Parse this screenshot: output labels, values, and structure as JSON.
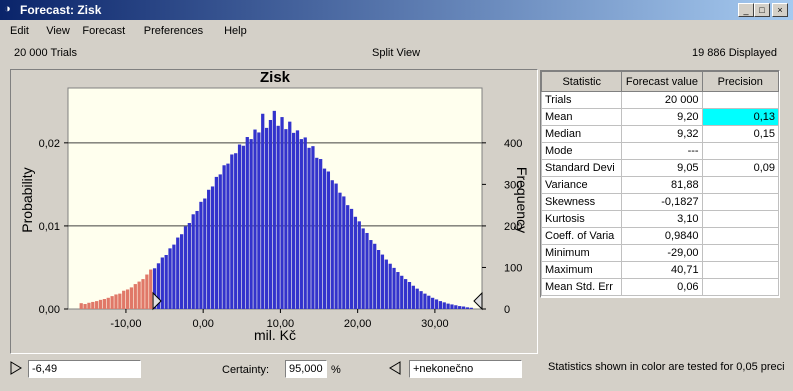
{
  "window": {
    "title": "Forecast: Zisk"
  },
  "menu": [
    "Edit",
    "View",
    "Forecast",
    "Preferences",
    "Help"
  ],
  "info": {
    "trials": "20 000 Trials",
    "view": "Split View",
    "displayed": "19 886 Displayed"
  },
  "chart_data": {
    "type": "histogram",
    "title": "Zisk",
    "xlabel": "mil. Kč",
    "ylabel": "Probability",
    "y2label": "Frequency",
    "bins": [
      -16,
      -15.5,
      -15,
      -14.5,
      -14,
      -13.5,
      -13,
      -12.5,
      -12,
      -11.5,
      -11,
      -10.5,
      -10,
      -9.5,
      -9,
      -8.5,
      -8,
      -7.5,
      -7,
      -6.5,
      -6,
      -5.5,
      -5,
      -4.5,
      -4,
      -3.5,
      -3,
      -2.5,
      -2,
      -1.5,
      -1,
      -0.5,
      0,
      0.5,
      1,
      1.5,
      2,
      2.5,
      3,
      3.5,
      4,
      4.5,
      5,
      5.5,
      6,
      6.5,
      7,
      7.5,
      8,
      8.5,
      9,
      9.5,
      10,
      10.5,
      11,
      11.5,
      12,
      12.5,
      13,
      13.5,
      14,
      14.5,
      15,
      15.5,
      16,
      16.5,
      17,
      17.5,
      18,
      18.5,
      19,
      19.5,
      20,
      20.5,
      21,
      21.5,
      22,
      22.5,
      23,
      23.5,
      24,
      24.5,
      25,
      25.5,
      26,
      26.5,
      27,
      27.5,
      28,
      28.5,
      29,
      29.5,
      30,
      30.5,
      31,
      31.5,
      32,
      32.5,
      33,
      33.5,
      34,
      34.5,
      35
    ],
    "series": [
      {
        "name": "Frequency",
        "axis": "y2",
        "color": "#3333cc",
        "tail_color": "#e07868",
        "values": [
          14,
          12,
          15,
          17,
          19,
          22,
          24,
          27,
          31,
          35,
          37,
          44,
          47,
          52,
          60,
          66,
          72,
          83,
          95,
          98,
          110,
          124,
          130,
          146,
          155,
          172,
          180,
          199,
          207,
          228,
          236,
          258,
          266,
          287,
          295,
          318,
          324,
          346,
          350,
          372,
          375,
          396,
          393,
          414,
          409,
          432,
          425,
          470,
          436,
          455,
          477,
          441,
          462,
          433,
          451,
          424,
          430,
          409,
          413,
          388,
          392,
          364,
          361,
          338,
          331,
          310,
          302,
          280,
          271,
          250,
          241,
          222,
          211,
          194,
          183,
          166,
          157,
          142,
          131,
          119,
          109,
          99,
          89,
          80,
          72,
          65,
          56,
          49,
          43,
          37,
          32,
          27,
          23,
          19,
          16,
          13,
          11,
          9,
          7,
          6,
          4,
          3
        ]
      }
    ],
    "lower_bound": {
      "value": -6.49,
      "label": "-6,49"
    },
    "xlim": [
      -17.5,
      36.1
    ],
    "xticks": [
      {
        "value": -10,
        "label": "-10,00"
      },
      {
        "value": 0,
        "label": "0,00"
      },
      {
        "value": 10,
        "label": "10,00"
      },
      {
        "value": 20,
        "label": "20,00"
      },
      {
        "value": 30,
        "label": "30,00"
      }
    ],
    "ylim": [
      0,
      0.0266
    ],
    "yticks": [
      {
        "value": 0,
        "label": "0,00"
      },
      {
        "value": 0.01,
        "label": "0,01"
      },
      {
        "value": 0.02,
        "label": "0,02"
      }
    ],
    "y2lim": [
      0,
      532
    ],
    "y2ticks": [
      0,
      100,
      200,
      300,
      400
    ],
    "grid": true,
    "background": "#ffffee"
  },
  "table": {
    "header": [
      "Statistic",
      "Forecast value",
      "Precision"
    ],
    "rows": [
      [
        "Trials",
        "20 000",
        null
      ],
      [
        "Mean",
        "9,20",
        "0,13"
      ],
      [
        "Median",
        "9,32",
        "0,15"
      ],
      [
        "Mode",
        "---",
        null
      ],
      [
        "Standard Devi",
        "9,05",
        "0,09"
      ],
      [
        "Variance",
        "81,88",
        null
      ],
      [
        "Skewness",
        "-0,1827",
        null
      ],
      [
        "Kurtosis",
        "3,10",
        null
      ],
      [
        "Coeff.  of Varia",
        "0,9840",
        null
      ],
      [
        "Minimum",
        "-29,00",
        null
      ],
      [
        "Maximum",
        "40,71",
        null
      ],
      [
        "Mean Std. Err",
        "0,06",
        null
      ]
    ],
    "highlight": {
      "row": 1,
      "col": 2,
      "color": "#00ffff"
    }
  },
  "footer": {
    "lower": "-6,49",
    "certainty_label": "Certainty:",
    "certainty": "95,000",
    "percent": "%",
    "upper": "+nekonečno",
    "note": "Statistics shown in color are tested for 0,05 preci"
  }
}
